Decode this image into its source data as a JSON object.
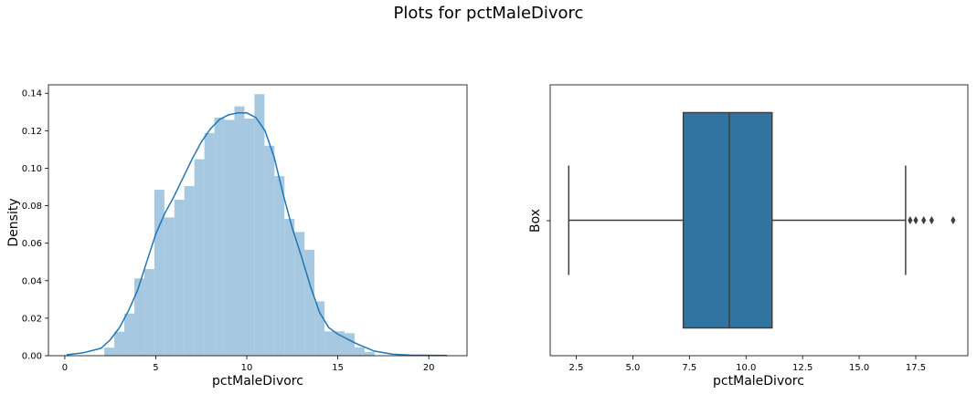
{
  "title": "Plots for pctMaleDivorc",
  "chart_data": [
    {
      "type": "bar",
      "subtype": "histogram+kde",
      "xlabel": "pctMaleDivorc",
      "ylabel": "Density",
      "xlim": [
        -0.9,
        22.1
      ],
      "ylim": [
        0,
        0.1445
      ],
      "xticks": [
        0,
        5,
        10,
        15,
        20
      ],
      "yticks": [
        0.0,
        0.02,
        0.04,
        0.06,
        0.08,
        0.1,
        0.12,
        0.14
      ],
      "bar_color": "#a6c8e0",
      "line_color": "#1f77b4",
      "bins": [
        {
          "x0": 2.17,
          "x1": 2.72,
          "density": 0.0043
        },
        {
          "x0": 2.72,
          "x1": 3.27,
          "density": 0.0128
        },
        {
          "x0": 3.27,
          "x1": 3.82,
          "density": 0.0225
        },
        {
          "x0": 3.82,
          "x1": 4.37,
          "density": 0.0412
        },
        {
          "x0": 4.37,
          "x1": 4.92,
          "density": 0.0462
        },
        {
          "x0": 4.92,
          "x1": 5.47,
          "density": 0.0885
        },
        {
          "x0": 5.47,
          "x1": 6.02,
          "density": 0.0738
        },
        {
          "x0": 6.02,
          "x1": 6.57,
          "density": 0.0832
        },
        {
          "x0": 6.57,
          "x1": 7.12,
          "density": 0.0905
        },
        {
          "x0": 7.12,
          "x1": 7.67,
          "density": 0.1048
        },
        {
          "x0": 7.67,
          "x1": 8.22,
          "density": 0.1188
        },
        {
          "x0": 8.22,
          "x1": 8.77,
          "density": 0.127
        },
        {
          "x0": 8.77,
          "x1": 9.32,
          "density": 0.1258
        },
        {
          "x0": 9.32,
          "x1": 9.87,
          "density": 0.133
        },
        {
          "x0": 9.87,
          "x1": 10.42,
          "density": 0.1265
        },
        {
          "x0": 10.42,
          "x1": 10.97,
          "density": 0.1395
        },
        {
          "x0": 10.97,
          "x1": 11.52,
          "density": 0.112
        },
        {
          "x0": 11.52,
          "x1": 12.07,
          "density": 0.0958
        },
        {
          "x0": 12.07,
          "x1": 12.62,
          "density": 0.073
        },
        {
          "x0": 12.62,
          "x1": 13.17,
          "density": 0.066
        },
        {
          "x0": 13.17,
          "x1": 13.72,
          "density": 0.0565
        },
        {
          "x0": 13.72,
          "x1": 14.27,
          "density": 0.029
        },
        {
          "x0": 14.27,
          "x1": 14.82,
          "density": 0.013
        },
        {
          "x0": 14.82,
          "x1": 15.37,
          "density": 0.013
        },
        {
          "x0": 15.37,
          "x1": 15.92,
          "density": 0.012
        },
        {
          "x0": 15.92,
          "x1": 16.47,
          "density": 0.0045
        },
        {
          "x0": 16.47,
          "x1": 17.02,
          "density": 0.002
        }
      ],
      "kde": {
        "x": [
          0.1,
          1,
          2,
          2.5,
          3,
          3.5,
          4,
          4.5,
          5,
          5.5,
          6,
          6.5,
          7,
          7.5,
          8,
          8.5,
          9,
          9.5,
          10,
          10.5,
          11,
          11.5,
          12,
          12.5,
          13,
          13.5,
          14,
          14.5,
          15,
          15.5,
          16,
          17,
          18,
          19,
          21
        ],
        "y": [
          0.0005,
          0.0015,
          0.004,
          0.0085,
          0.015,
          0.024,
          0.035,
          0.05,
          0.065,
          0.076,
          0.085,
          0.095,
          0.105,
          0.114,
          0.121,
          0.126,
          0.1285,
          0.1295,
          0.1295,
          0.127,
          0.12,
          0.106,
          0.086,
          0.068,
          0.053,
          0.037,
          0.023,
          0.015,
          0.0115,
          0.009,
          0.0065,
          0.0025,
          0.0008,
          0.0003,
          0.0001
        ]
      }
    },
    {
      "type": "box",
      "xlabel": "pctMaleDivorc",
      "ylabel": "Box",
      "xlim": [
        1.35,
        19.8
      ],
      "xticks": [
        2.5,
        5.0,
        7.5,
        10.0,
        12.5,
        15.0,
        17.5
      ],
      "box_color": "#3274a1",
      "line_color": "#3f3f3f",
      "whisker_low": 2.17,
      "q1": 7.23,
      "median": 9.26,
      "q3": 11.15,
      "whisker_high": 17.05,
      "outliers": [
        17.25,
        17.5,
        17.85,
        18.2,
        19.15
      ]
    }
  ]
}
